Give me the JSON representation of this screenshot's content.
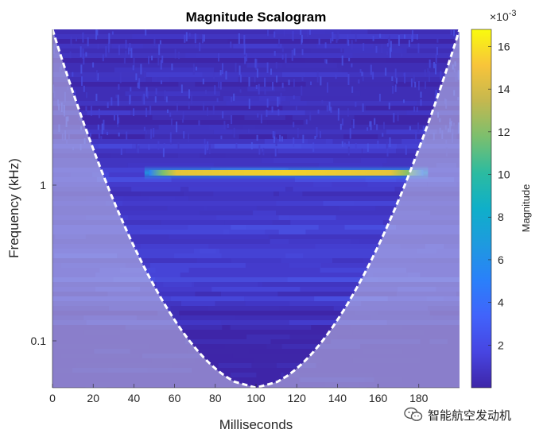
{
  "chart_data": {
    "type": "heatmap",
    "title": "Magnitude Scalogram",
    "xlabel": "Milliseconds",
    "ylabel": "Frequency (kHz)",
    "x_range": [
      0,
      200
    ],
    "x_ticks": [
      0,
      20,
      40,
      60,
      80,
      100,
      120,
      140,
      160,
      180
    ],
    "y_scale": "log",
    "y_range": [
      0.05,
      10
    ],
    "y_ticks": [
      {
        "value": 0.1,
        "label": "0.1"
      },
      {
        "value": 1,
        "label": "1"
      }
    ],
    "colormap": "parula",
    "colorbar": {
      "label": "Magnitude",
      "exponent": "×10",
      "exponent_power": "-3",
      "range": [
        0,
        16.8
      ],
      "ticks": [
        2,
        4,
        6,
        8,
        10,
        12,
        14,
        16
      ]
    },
    "features": [
      {
        "description": "tone",
        "frequency_khz": 1.2,
        "time_ms": [
          30,
          190
        ],
        "peak_magnitude_e3": 16.5
      }
    ],
    "cone_of_influence": {
      "shown": true,
      "style": "white dashed",
      "min_frequency_khz": 0.05,
      "center_ms": 100
    },
    "background_magnitude_e3": [
      0.3,
      3
    ]
  },
  "watermark": {
    "text": "智能航空发动机"
  },
  "colors": {
    "dark_blue": "#3e26a8",
    "coi_overlay": "#c8c8e8",
    "cone_line": "#ffffff",
    "axis": "#262626"
  }
}
